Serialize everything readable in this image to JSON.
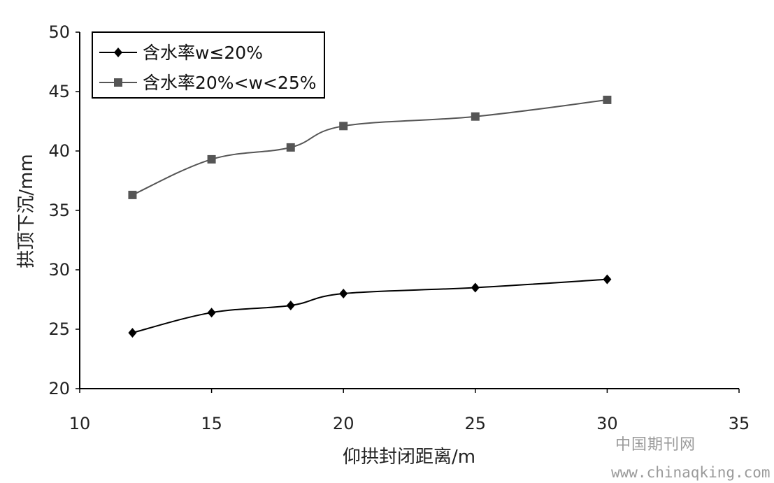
{
  "chart_data": {
    "type": "line",
    "xlabel": "仰拱封闭距离/m",
    "ylabel": "拱顶下沉/mm",
    "xlim": [
      10,
      35
    ],
    "ylim": [
      20,
      50
    ],
    "xticks": [
      10,
      15,
      20,
      25,
      30,
      35
    ],
    "yticks": [
      20,
      25,
      30,
      35,
      40,
      45,
      50
    ],
    "grid": false,
    "legend_position": "top-left",
    "series": [
      {
        "name": "含水率w≤20%",
        "marker": "diamond",
        "color": "#000000",
        "x": [
          12,
          15,
          18,
          20,
          25,
          30
        ],
        "y": [
          24.7,
          26.4,
          27.0,
          28.0,
          28.5,
          29.2
        ]
      },
      {
        "name": "含水率20%<w<25%",
        "marker": "square",
        "color": "#555555",
        "x": [
          12,
          15,
          18,
          20,
          25,
          30
        ],
        "y": [
          36.3,
          39.3,
          40.3,
          42.1,
          42.9,
          44.3
        ]
      }
    ]
  },
  "watermark": {
    "site_name": "中国期刊网",
    "url": "www.chinaqking.com"
  }
}
